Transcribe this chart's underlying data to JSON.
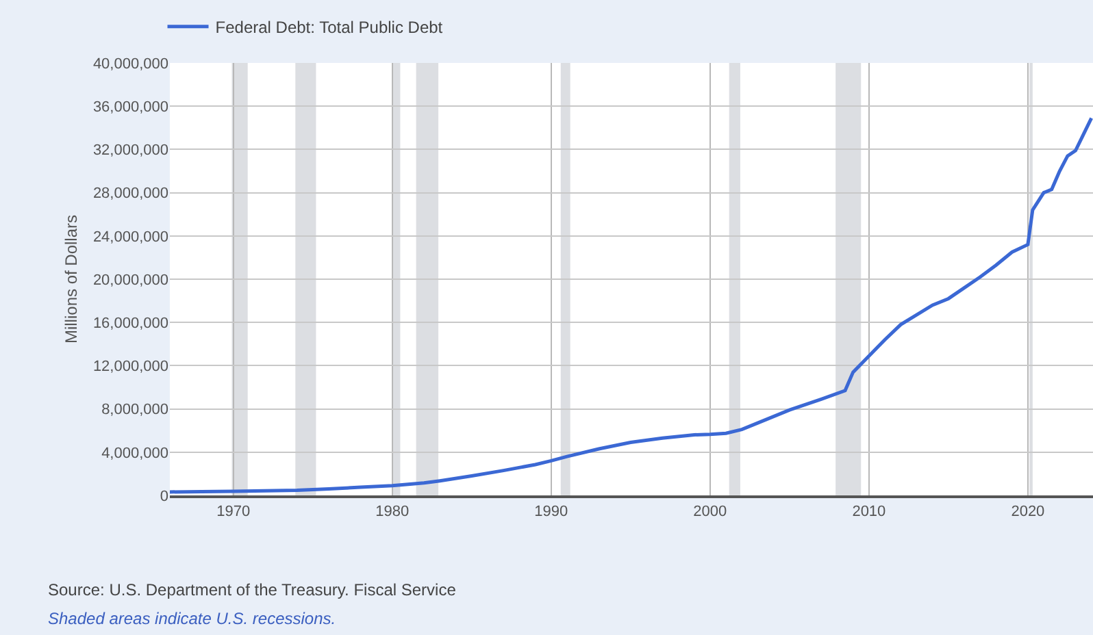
{
  "chart_data": {
    "type": "line",
    "ylabel": "Millions of Dollars",
    "x": [
      1966,
      1968,
      1970,
      1972,
      1974,
      1976,
      1978,
      1980,
      1982,
      1983,
      1985,
      1987,
      1989,
      1990,
      1991,
      1993,
      1995,
      1997,
      1999,
      2000,
      2001,
      2002,
      2003,
      2005,
      2007,
      2008.5,
      2009,
      2010,
      2011,
      2012,
      2013,
      2014,
      2015,
      2016,
      2017,
      2018,
      2019,
      2020,
      2020.3,
      2021,
      2021.5,
      2022,
      2022.5,
      2023,
      2023.5,
      2024
    ],
    "series": [
      {
        "name": "Federal Debt: Total Public Debt",
        "color": "#3b68d4",
        "values": [
          320000,
          350000,
          380000,
          430000,
          480000,
          600000,
          760000,
          900000,
          1150000,
          1350000,
          1800000,
          2300000,
          2850000,
          3200000,
          3600000,
          4300000,
          4900000,
          5300000,
          5600000,
          5650000,
          5750000,
          6100000,
          6700000,
          7900000,
          8900000,
          9700000,
          11400000,
          12900000,
          14400000,
          15800000,
          16700000,
          17600000,
          18200000,
          19200000,
          20200000,
          21300000,
          22500000,
          23200000,
          26400000,
          28000000,
          28300000,
          30000000,
          31400000,
          31900000,
          33400000,
          34900000
        ]
      }
    ],
    "xlim": [
      1966,
      2024.1
    ],
    "xticks": [
      1970,
      1980,
      1990,
      2000,
      2010,
      2020
    ],
    "ylim": [
      0,
      40000000
    ],
    "yticks": [
      {
        "value": 0,
        "label": "0"
      },
      {
        "value": 4000000,
        "label": "4,000,000"
      },
      {
        "value": 8000000,
        "label": "8,000,000"
      },
      {
        "value": 12000000,
        "label": "12,000,000"
      },
      {
        "value": 16000000,
        "label": "16,000,000"
      },
      {
        "value": 20000000,
        "label": "20,000,000"
      },
      {
        "value": 24000000,
        "label": "24,000,000"
      },
      {
        "value": 28000000,
        "label": "28,000,000"
      },
      {
        "value": 32000000,
        "label": "32,000,000"
      },
      {
        "value": 36000000,
        "label": "36,000,000"
      },
      {
        "value": 40000000,
        "label": "40,000,000"
      }
    ],
    "bands": [
      {
        "axis": "x",
        "from": 1969.9,
        "to": 1970.9,
        "color": "#dcdee2"
      },
      {
        "axis": "x",
        "from": 1973.9,
        "to": 1975.2,
        "color": "#dcdee2"
      },
      {
        "axis": "x",
        "from": 1980.0,
        "to": 1980.5,
        "color": "#dcdee2"
      },
      {
        "axis": "x",
        "from": 1981.5,
        "to": 1982.9,
        "color": "#dcdee2"
      },
      {
        "axis": "x",
        "from": 1990.6,
        "to": 1991.2,
        "color": "#dcdee2"
      },
      {
        "axis": "x",
        "from": 2001.2,
        "to": 2001.9,
        "color": "#dcdee2"
      },
      {
        "axis": "x",
        "from": 2007.9,
        "to": 2009.5,
        "color": "#dcdee2"
      },
      {
        "axis": "x",
        "from": 2020.1,
        "to": 2020.3,
        "color": "#dcdee2"
      }
    ],
    "grid": true,
    "legend": "top left",
    "marker": "none",
    "line_style": "solid",
    "annotations": [
      "Source: U.S. Department of the Treasury. Fiscal Service",
      "Shaded areas indicate U.S. recessions."
    ]
  }
}
